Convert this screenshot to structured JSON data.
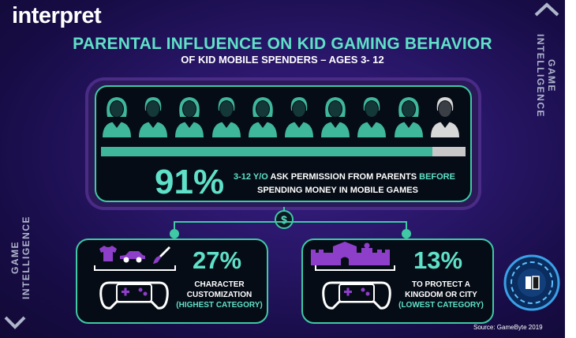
{
  "brand": {
    "logo": "interpret"
  },
  "header": {
    "title": "PARENTAL INFLUENCE ON KID GAMING BEHAVIOR",
    "subtitle": "OF KID MOBILE SPENDERS – AGES 3- 12"
  },
  "sidebar": {
    "right_label": "GAME INTELLIGENCE",
    "left_label": "GAME INTELLIGENCE"
  },
  "main_stat": {
    "percent_text": "91%",
    "percent_value": 0.91,
    "people_total": 10,
    "people_highlighted": 9,
    "line1_teal": "3-12 Y/O",
    "line1_white": " ASK PERMISSION FROM PARENTS ",
    "line1_teal2": "BEFORE",
    "line2": "SPENDING MONEY IN MOBILE GAMES"
  },
  "connector": {
    "symbol": "$"
  },
  "left_stat": {
    "percent": "27%",
    "line1": "CHARACTER",
    "line2": "CUSTOMIZATION",
    "note": "(HIGHEST CATEGORY)",
    "icons": [
      "tshirt-icon",
      "car-icon",
      "paintbrush-icon",
      "gamepad-phone-icon"
    ]
  },
  "right_stat": {
    "percent": "13%",
    "line1": "TO PROTECT A",
    "line2": "KINGDOM OR CITY",
    "note": "(LOWEST CATEGORY)",
    "icons": [
      "castle-icon",
      "gamepad-phone-icon"
    ]
  },
  "footer": {
    "source": "Source: GameByte 2019"
  },
  "colors": {
    "accent_teal": "#3fc9a5",
    "text_teal": "#5fe0c8",
    "purple": "#8e3fc9",
    "background": "#281667"
  }
}
